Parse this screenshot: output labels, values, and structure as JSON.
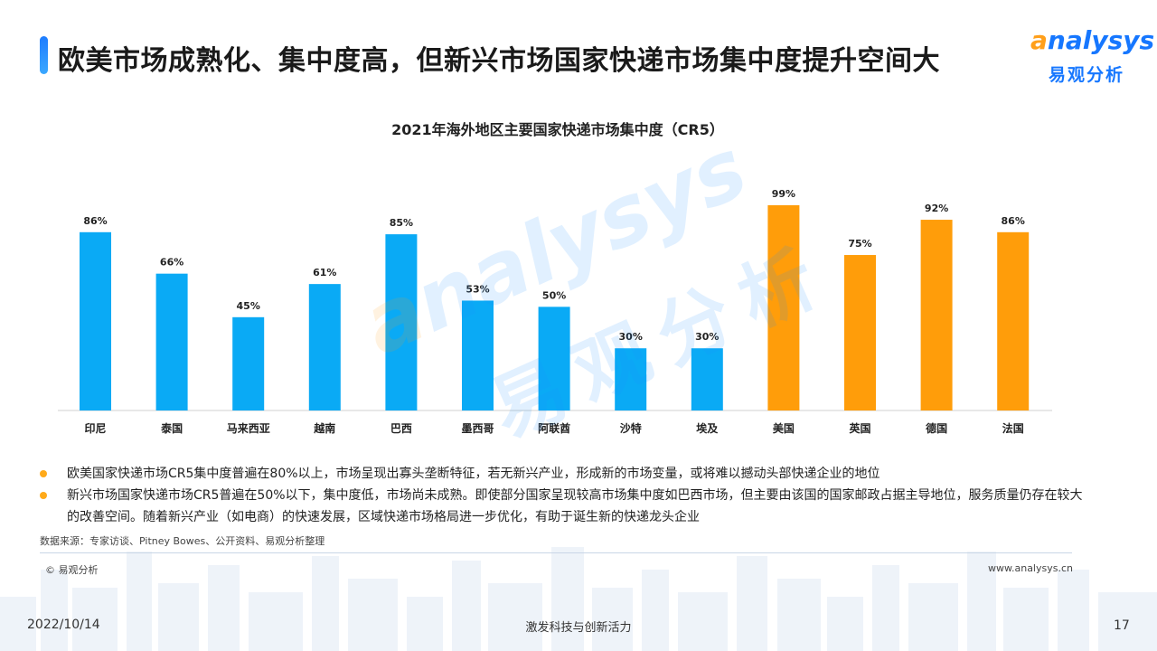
{
  "header": {
    "title": "欧美市场成熟化、集中度高，但新兴市场国家快递市场集中度提升空间大",
    "logo_en_a": "a",
    "logo_en_rest": "nalysys",
    "logo_cn": "易观分析"
  },
  "watermark": {
    "en_a": "a",
    "en_rest": "nalysys",
    "cn": "易观分析"
  },
  "chart_data": {
    "type": "bar",
    "title": "2021年海外地区主要国家快递市场集中度（CR5）",
    "categories": [
      "印尼",
      "泰国",
      "马来西亚",
      "越南",
      "巴西",
      "墨西哥",
      "阿联酋",
      "沙特",
      "埃及",
      "美国",
      "英国",
      "德国",
      "法国"
    ],
    "values": [
      86,
      66,
      45,
      61,
      85,
      53,
      50,
      30,
      30,
      99,
      75,
      92,
      86
    ],
    "value_labels": [
      "86%",
      "66%",
      "45%",
      "61%",
      "85%",
      "53%",
      "50%",
      "30%",
      "30%",
      "99%",
      "75%",
      "92%",
      "86%"
    ],
    "bar_colors": [
      "#0aaaf5",
      "#0aaaf5",
      "#0aaaf5",
      "#0aaaf5",
      "#0aaaf5",
      "#0aaaf5",
      "#0aaaf5",
      "#0aaaf5",
      "#0aaaf5",
      "#ff9d0a",
      "#ff9d0a",
      "#ff9d0a",
      "#ff9d0a"
    ],
    "ylim": [
      0,
      100
    ],
    "xlabel": "",
    "ylabel": "",
    "grid": false,
    "legend": false
  },
  "notes": [
    "欧美国家快递市场CR5集中度普遍在80%以上，市场呈现出寡头垄断特征，若无新兴产业，形成新的市场变量，或将难以撼动头部快递企业的地位",
    "新兴市场国家快递市场CR5普遍在50%以下，集中度低，市场尚未成熟。即使部分国家呈现较高市场集中度如巴西市场，但主要由该国的国家邮政占据主导地位，服务质量仍存在较大的改善空间。随着新兴产业（如电商）的快速发展，区域快递市场格局进一步优化，有助于诞生新的快递龙头企业"
  ],
  "source": "数据来源：专家访谈、Pitney Bowes、公开资料、易观分析整理",
  "copyright": "© 易观分析",
  "website": "www.analysys.cn",
  "footer": {
    "date": "2022/10/14",
    "slogan": "激发科技与创新活力",
    "page": "17"
  },
  "colors": {
    "emerging": "#0aaaf5",
    "mature": "#ff9d0a",
    "accent": "#1677ff",
    "bullet": "#ffaa1a"
  }
}
